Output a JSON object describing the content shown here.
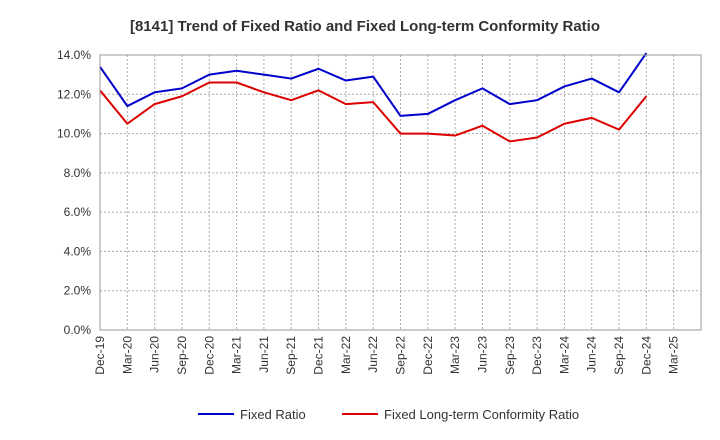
{
  "chart_data": {
    "type": "line",
    "title": "[8141]  Trend of Fixed Ratio and Fixed Long-term Conformity Ratio",
    "xlabel": "",
    "ylabel": "",
    "ylim": [
      0,
      14
    ],
    "y_ticks": [
      "0.0%",
      "2.0%",
      "4.0%",
      "6.0%",
      "8.0%",
      "10.0%",
      "12.0%",
      "14.0%"
    ],
    "y_tick_values": [
      0,
      2,
      4,
      6,
      8,
      10,
      12,
      14
    ],
    "grid": true,
    "legend_position": "bottom",
    "x_tick_labels": [
      "Dec-19",
      "Mar-20",
      "Jun-20",
      "Sep-20",
      "Dec-20",
      "Mar-21",
      "Jun-21",
      "Sep-21",
      "Dec-21",
      "Mar-22",
      "Jun-22",
      "Sep-22",
      "Dec-22",
      "Mar-23",
      "Jun-23",
      "Sep-23",
      "Dec-23",
      "Mar-24",
      "Jun-24",
      "Sep-24",
      "Dec-24",
      "Mar-25"
    ],
    "categories": [
      "Dec-19",
      "Mar-20",
      "Jun-20",
      "Sep-20",
      "Dec-20",
      "Mar-21",
      "Jun-21",
      "Sep-21",
      "Dec-21",
      "Mar-22",
      "Jun-22",
      "Sep-22",
      "Dec-22",
      "Mar-23",
      "Jun-23",
      "Sep-23",
      "Dec-23",
      "Mar-24",
      "Jun-24",
      "Sep-24",
      "Dec-24"
    ],
    "series": [
      {
        "name": "Fixed Ratio",
        "color": "#0000cc",
        "values": [
          13.4,
          11.4,
          12.1,
          12.3,
          13.0,
          13.2,
          13.0,
          12.8,
          13.3,
          12.7,
          12.9,
          10.9,
          11.0,
          11.7,
          12.3,
          11.5,
          11.7,
          12.4,
          12.8,
          12.1,
          14.1
        ]
      },
      {
        "name": "Fixed Long-term Conformity Ratio",
        "color": "#dd0000",
        "values": [
          12.2,
          10.5,
          11.5,
          11.9,
          12.6,
          12.6,
          12.1,
          11.7,
          12.2,
          11.5,
          11.6,
          10.0,
          10.0,
          9.9,
          10.4,
          9.6,
          9.8,
          10.5,
          10.8,
          10.2,
          11.9
        ]
      }
    ]
  }
}
